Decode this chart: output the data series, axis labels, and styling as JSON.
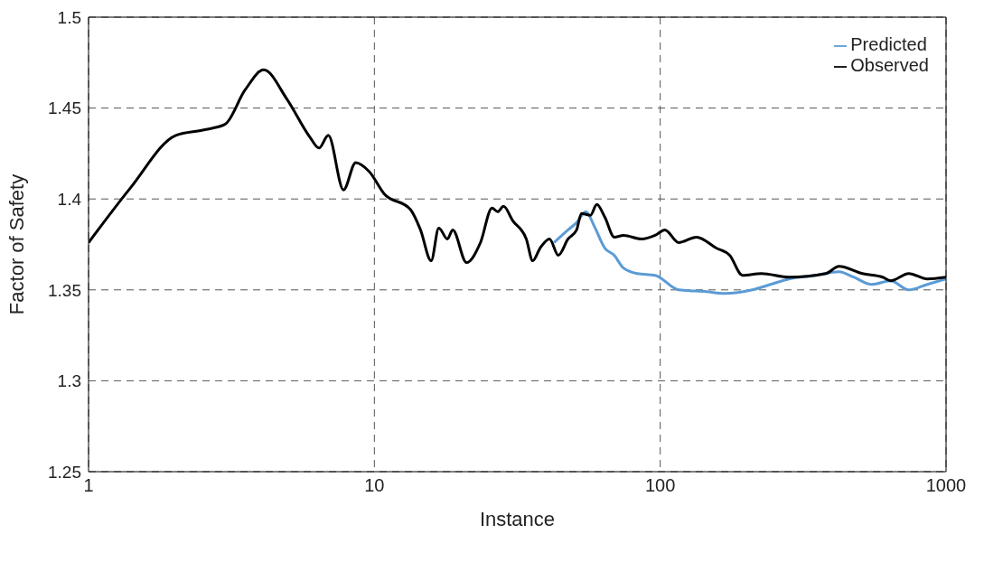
{
  "chart_data": {
    "type": "line",
    "xlabel": "Instance",
    "ylabel": "Factor of Safety",
    "log": "x",
    "xlim": [
      1,
      1000
    ],
    "xticks": [
      1,
      10,
      100,
      1000
    ],
    "ylim": [
      1.25,
      1.5
    ],
    "yticks": [
      1.25,
      1.3,
      1.35,
      1.4,
      1.45,
      1.5
    ],
    "grid": true,
    "legend": "top right",
    "marker": "none",
    "line_style": "solid",
    "series": [
      {
        "name": "Predicted",
        "color": "#5b9bd5",
        "x": [
          42.5,
          47.6,
          51,
          55,
          58.8,
          64,
          69,
          74.4,
          83,
          96,
          116,
          145,
          168,
          210,
          243,
          282,
          350,
          422,
          475,
          550,
          640,
          740,
          860,
          1000
        ],
        "values": [
          1.376,
          1.383,
          1.387,
          1.393,
          1.385,
          1.373,
          1.369,
          1.362,
          1.359,
          1.358,
          1.35,
          1.349,
          1.348,
          1.35,
          1.353,
          1.356,
          1.358,
          1.36,
          1.357,
          1.353,
          1.355,
          1.35,
          1.353,
          1.356
        ]
      },
      {
        "name": "Observed",
        "color": "#000000",
        "x": [
          1,
          1.4,
          2.02,
          2.53,
          3,
          3.53,
          4.1,
          4.94,
          5.95,
          6.4,
          6.9,
          7.8,
          8.6,
          9.6,
          10.8,
          13.4,
          14.5,
          15.8,
          16.8,
          18,
          18.8,
          21,
          23.5,
          25.8,
          27,
          28.3,
          30.5,
          34,
          35.8,
          38,
          41,
          44,
          47.6,
          51,
          53,
          57,
          60,
          64,
          69.1,
          74.4,
          86,
          96,
          103.8,
          116,
          134,
          157,
          175,
          194,
          226,
          282,
          380,
          422,
          510,
          600,
          640,
          740,
          860,
          1000
        ],
        "values": [
          1.376,
          1.406,
          1.435,
          1.438,
          1.441,
          1.46,
          1.471,
          1.455,
          1.434,
          1.428,
          1.435,
          1.405,
          1.42,
          1.415,
          1.403,
          1.394,
          1.383,
          1.366,
          1.384,
          1.378,
          1.383,
          1.365,
          1.376,
          1.395,
          1.393,
          1.396,
          1.388,
          1.378,
          1.366,
          1.373,
          1.378,
          1.369,
          1.378,
          1.383,
          1.392,
          1.391,
          1.397,
          1.39,
          1.379,
          1.38,
          1.378,
          1.38,
          1.383,
          1.376,
          1.379,
          1.373,
          1.369,
          1.358,
          1.359,
          1.357,
          1.359,
          1.363,
          1.359,
          1.357,
          1.355,
          1.359,
          1.356,
          1.357
        ]
      }
    ]
  }
}
